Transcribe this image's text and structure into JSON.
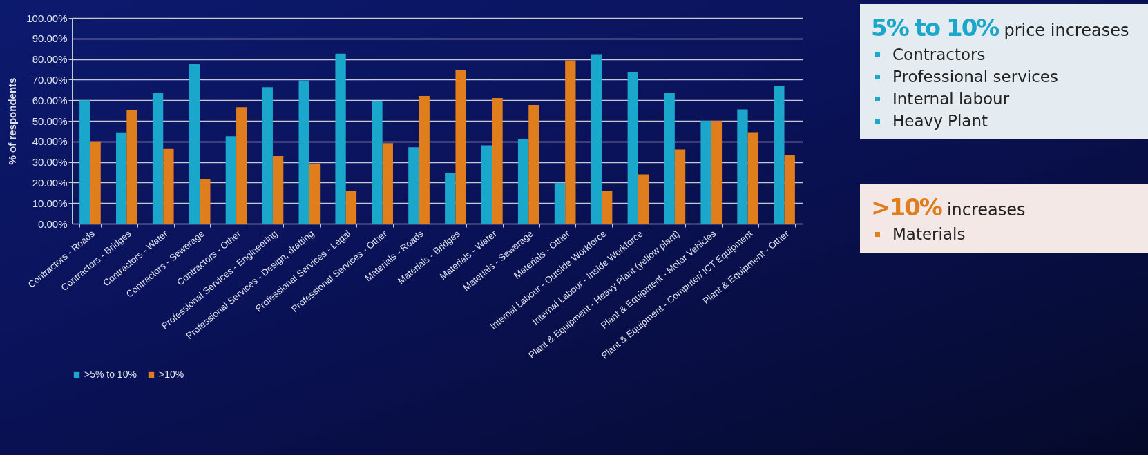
{
  "chart_data": [
    {
      "type": "bar",
      "ylabel": "% of respondents",
      "categories": [
        "Contractors - Roads",
        "Contractors - Bridges",
        "Contractors - Water",
        "Contractors - Sewerage",
        "Contractors - Other",
        "Professional Services - Engineering",
        "Professional Services - Design, drafting",
        "Professional Services - Legal",
        "Professional Services - Other",
        "Materials - Roads",
        "Materials - Bridges",
        "Materials - Water",
        "Materials - Sewerage",
        "Materials - Other",
        "Internal Labour - Outside Workforce",
        "Internal Labour - Inside Workforce",
        "Plant & Equipment - Heavy Plant (yellow plant)",
        "Plant & Equipment - Motor Vehicles",
        "Plant & Equipment - Computer/ ICT Equipment",
        "Plant & Equipment - Other"
      ],
      "series": [
        {
          "name": ">5% to 10%",
          "color": "#1ba6cc",
          "values": [
            60.0,
            44.4,
            63.5,
            77.6,
            42.5,
            66.4,
            69.6,
            82.6,
            59.5,
            37.2,
            24.5,
            38.1,
            41.1,
            19.9,
            82.4,
            73.7,
            63.5,
            50.0,
            55.5,
            66.8
          ]
        },
        {
          "name": ">10%",
          "color": "#e07d1c",
          "values": [
            40.0,
            55.4,
            36.3,
            21.8,
            56.6,
            32.9,
            29.3,
            15.8,
            39.2,
            62.1,
            74.7,
            61.1,
            57.7,
            79.4,
            16.0,
            24.0,
            36.1,
            50.0,
            44.5,
            33.2
          ]
        }
      ],
      "ylim": [
        0,
        100
      ],
      "yticks": [
        {
          "value": 0,
          "label": "0.00%"
        },
        {
          "value": 10,
          "label": "10.00%"
        },
        {
          "value": 20,
          "label": "20.00%"
        },
        {
          "value": 30,
          "label": "30.00%"
        },
        {
          "value": 40,
          "label": "40.00%"
        },
        {
          "value": 50,
          "label": "50.00%"
        },
        {
          "value": 60,
          "label": "60.00%"
        },
        {
          "value": 70,
          "label": "70.00%"
        },
        {
          "value": 80,
          "label": "80.00%"
        },
        {
          "value": 90,
          "label": "90.00%"
        },
        {
          "value": 100,
          "label": "100.00%"
        }
      ],
      "grid": "y",
      "legend": "bottom"
    },
    {
      "type": "other",
      "title": "5% to 10%",
      "subtitle": "price increases",
      "color": "#1ba6cc",
      "annotations": [
        "Contractors",
        "Professional services",
        "Internal labour",
        "Heavy Plant"
      ]
    },
    {
      "type": "other",
      "title": ">10%",
      "subtitle": "increases",
      "color": "#e07d1c",
      "annotations": [
        "Materials"
      ]
    }
  ]
}
